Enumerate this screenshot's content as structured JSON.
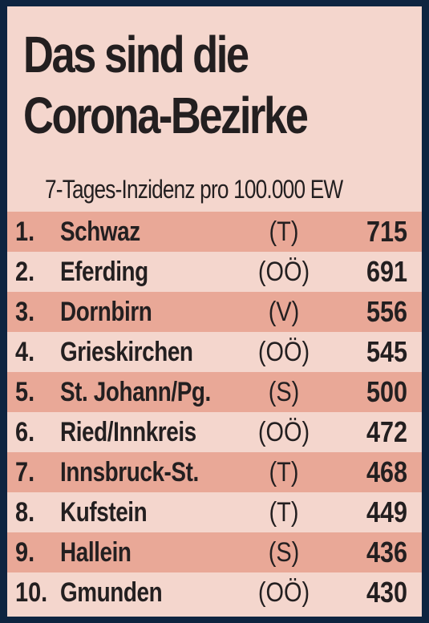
{
  "title_line1": "Das sind die",
  "title_line2": "Corona-Bezirke",
  "subtitle": "7-Tages-Inzidenz pro 100.000 EW",
  "rows": [
    {
      "rank": "1.",
      "name": "Schwaz",
      "state": "(T)",
      "value": "715"
    },
    {
      "rank": "2.",
      "name": "Eferding",
      "state": "(OÖ)",
      "value": "691"
    },
    {
      "rank": "3.",
      "name": "Dornbirn",
      "state": "(V)",
      "value": "556"
    },
    {
      "rank": "4.",
      "name": "Grieskirchen",
      "state": "(OÖ)",
      "value": "545"
    },
    {
      "rank": "5.",
      "name": "St. Johann/Pg.",
      "state": "(S)",
      "value": "500"
    },
    {
      "rank": "6.",
      "name": "Ried/Innkreis",
      "state": "(OÖ)",
      "value": "472"
    },
    {
      "rank": "7.",
      "name": "Innsbruck-St.",
      "state": "(T)",
      "value": "468"
    },
    {
      "rank": "8.",
      "name": "Kufstein",
      "state": "(T)",
      "value": "449"
    },
    {
      "rank": "9.",
      "name": "Hallein",
      "state": "(S)",
      "value": "436"
    },
    {
      "rank": "10.",
      "name": "Gmunden",
      "state": "(OÖ)",
      "value": "430"
    }
  ],
  "colors": {
    "frame": "#0e2440",
    "background": "#f4d6cd",
    "row_highlight": "#e9a897",
    "text": "#231f20"
  }
}
